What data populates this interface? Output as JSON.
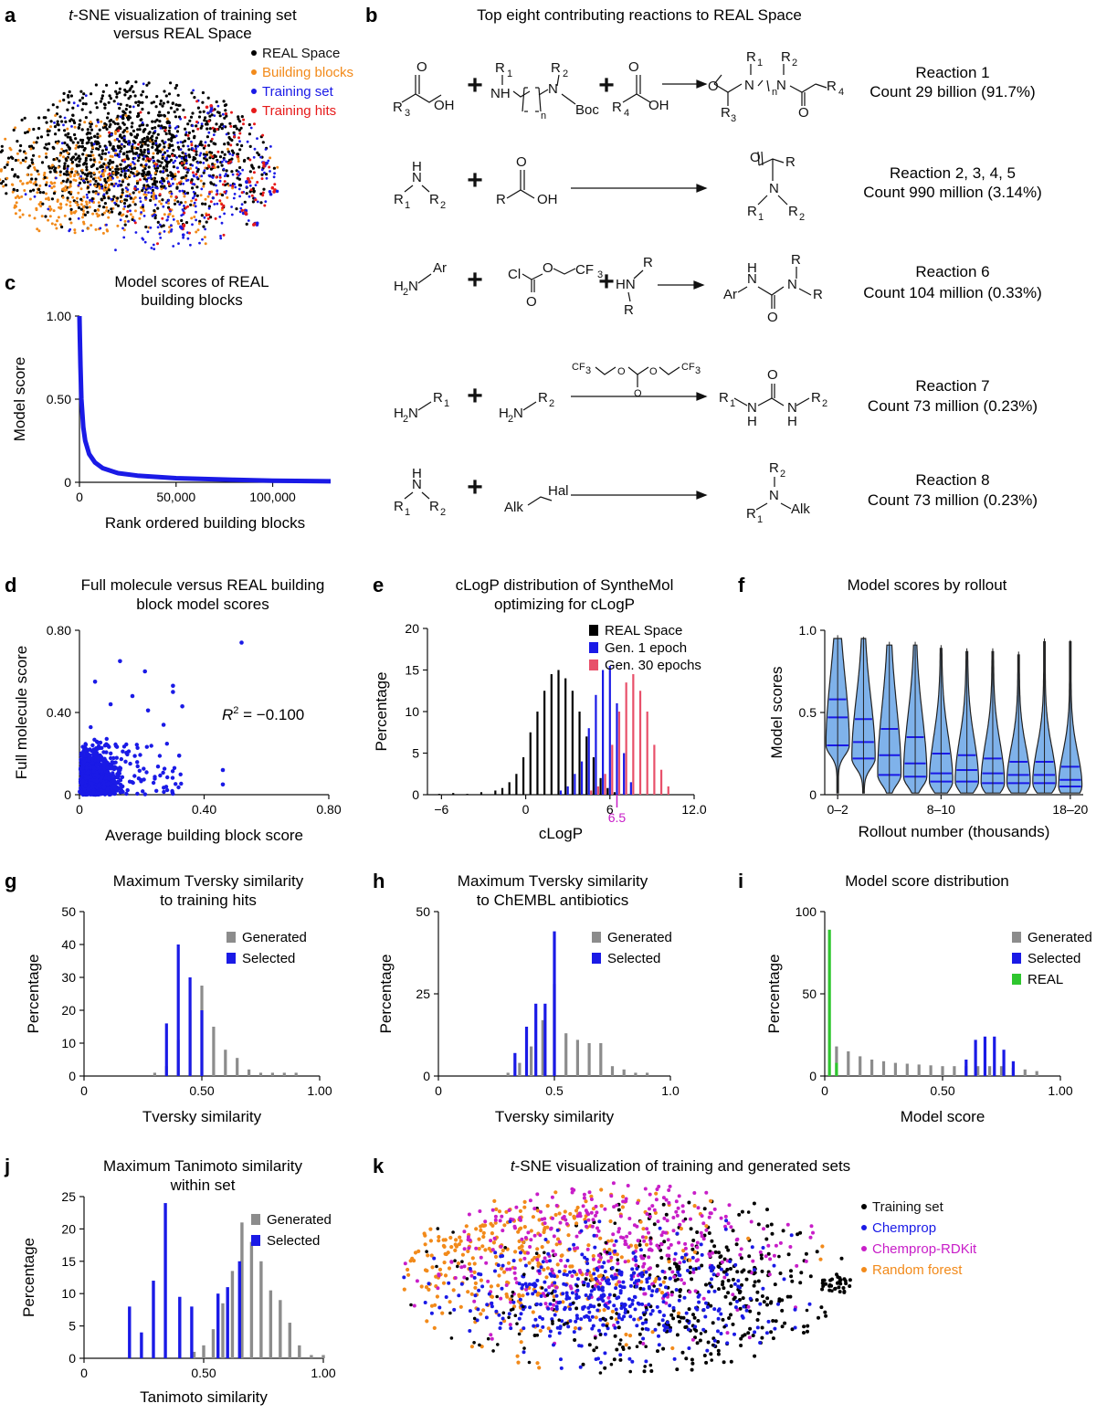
{
  "panels": {
    "a": {
      "label": "a",
      "title_italic": "t",
      "title_line1": "-SNE visualization of training set",
      "title_line2": "versus REAL Space",
      "legend": [
        {
          "name": "REAL Space",
          "color": "#000000"
        },
        {
          "name": "Building blocks",
          "color": "#f28a1a"
        },
        {
          "name": "Training set",
          "color": "#1a1ae6"
        },
        {
          "name": "Training hits",
          "color": "#e61a1a"
        }
      ]
    },
    "b": {
      "label": "b",
      "title": "Top eight contributing reactions to REAL Space",
      "reactions": [
        {
          "name": "Reaction 1",
          "count": "Count 29 billion (91.7%)"
        },
        {
          "name": "Reaction 2, 3, 4, 5",
          "count": "Count 990 million (3.14%)"
        },
        {
          "name": "Reaction 6",
          "count": "Count 104 million (0.33%)"
        },
        {
          "name": "Reaction 7",
          "count": "Count 73 million (0.23%)"
        },
        {
          "name": "Reaction 8",
          "count": "Count 73 million (0.23%)"
        }
      ]
    },
    "c": {
      "label": "c"
    },
    "d": {
      "label": "d",
      "r2_label": "R",
      "r2_value": " = −0.100"
    },
    "e": {
      "label": "e",
      "marker_label": "6.5"
    },
    "f": {
      "label": "f"
    },
    "g": {
      "label": "g"
    },
    "h": {
      "label": "h"
    },
    "i": {
      "label": "i"
    },
    "j": {
      "label": "j"
    },
    "k": {
      "label": "k",
      "title_italic": "t",
      "title_rest": "-SNE visualization of training and generated sets",
      "legend": [
        {
          "name": "Training set",
          "color": "#000000"
        },
        {
          "name": "Chemprop",
          "color": "#1a1ae6"
        },
        {
          "name": "Chemprop-RDKit",
          "color": "#c81ec8"
        },
        {
          "name": "Random forest",
          "color": "#f28a1a"
        }
      ]
    }
  },
  "colors": {
    "black": "#000000",
    "orange": "#f28a1a",
    "blue": "#1a1ae6",
    "red": "#e61a1a",
    "grey": "#8c8c8c",
    "green": "#2ec62e",
    "pink": "#e8506a",
    "magenta": "#c81ec8",
    "violin": "#7fb2ea"
  },
  "chart_data": [
    {
      "id": "c",
      "type": "line",
      "title": "Model scores of REAL building blocks",
      "xlabel": "Rank ordered building blocks",
      "ylabel": "Model score",
      "xlim": [
        0,
        130000
      ],
      "ylim": [
        0,
        1
      ],
      "xticks": [
        0,
        50000,
        100000
      ],
      "xtick_labels": [
        "0",
        "50,000",
        "100,000"
      ],
      "yticks": [
        0,
        0.5,
        1
      ],
      "ytick_labels": [
        "0",
        "0.50",
        "1.00"
      ],
      "series": [
        {
          "name": "Building blocks",
          "x": [
            0,
            200,
            500,
            1000,
            2000,
            3000,
            5000,
            8000,
            12000,
            20000,
            30000,
            50000,
            80000,
            100000,
            130000
          ],
          "y": [
            1.0,
            0.88,
            0.7,
            0.5,
            0.33,
            0.25,
            0.17,
            0.12,
            0.085,
            0.055,
            0.04,
            0.025,
            0.015,
            0.01,
            0.006
          ]
        }
      ]
    },
    {
      "id": "d",
      "type": "scatter",
      "title": "Full molecule versus REAL building block model scores",
      "xlabel": "Average building block score",
      "ylabel": "Full molecule score",
      "xlim": [
        0,
        0.8
      ],
      "ylim": [
        0,
        0.8
      ],
      "xticks": [
        0,
        0.4,
        0.8
      ],
      "xtick_labels": [
        "0",
        "0.40",
        "0.80"
      ],
      "yticks": [
        0,
        0.4,
        0.8
      ],
      "ytick_labels": [
        "0",
        "0.40",
        "0.80"
      ],
      "outliers": [
        {
          "x": 0.52,
          "y": 0.74
        },
        {
          "x": 0.13,
          "y": 0.65
        },
        {
          "x": 0.21,
          "y": 0.6
        },
        {
          "x": 0.3,
          "y": 0.5
        },
        {
          "x": 0.3,
          "y": 0.53
        },
        {
          "x": 0.33,
          "y": 0.43
        },
        {
          "x": 0.17,
          "y": 0.48
        },
        {
          "x": 0.27,
          "y": 0.34
        },
        {
          "x": 0.46,
          "y": 0.12
        },
        {
          "x": 0.46,
          "y": 0.05
        },
        {
          "x": 0.32,
          "y": 0.19
        },
        {
          "x": 0.1,
          "y": 0.44
        },
        {
          "x": 0.05,
          "y": 0.55
        },
        {
          "x": 0.22,
          "y": 0.41
        }
      ],
      "r2": -0.1
    },
    {
      "id": "e",
      "type": "bar",
      "title": "cLogP distribution of SyntheMol optimizing for cLogP",
      "xlabel": "cLogP",
      "ylabel": "Percentage",
      "xlim": [
        -7,
        12
      ],
      "ylim": [
        0,
        20
      ],
      "xticks": [
        -6,
        0,
        6,
        12
      ],
      "xtick_labels": [
        "−6",
        "0",
        "6",
        "12.0"
      ],
      "yticks": [
        0,
        5,
        10,
        15,
        20
      ],
      "ytick_labels": [
        "0",
        "5",
        "10",
        "15",
        "20"
      ],
      "series": [
        {
          "name": "REAL Space",
          "color": "#000000",
          "x": [
            -6,
            -5,
            -4,
            -3,
            -2,
            -1.5,
            -1,
            -0.5,
            0,
            0.5,
            1,
            1.5,
            2,
            2.5,
            3,
            3.5,
            4,
            4.5,
            5,
            5.5,
            6,
            6.5
          ],
          "values": [
            0.1,
            0.2,
            0.1,
            0.3,
            0.5,
            0.8,
            1.5,
            2.5,
            4.5,
            7.5,
            10.0,
            12.5,
            14.5,
            15.0,
            14.0,
            12.5,
            10.0,
            7.0,
            4.5,
            2.0,
            0.8,
            0.3
          ]
        },
        {
          "name": "Gen. 1 epoch",
          "color": "#1a1ae6",
          "x": [
            2.5,
            3,
            3.5,
            4,
            4.5,
            5,
            5.5,
            6,
            6.5,
            7,
            7.5
          ],
          "values": [
            0.5,
            1.0,
            2.5,
            4.0,
            8.0,
            12.0,
            15.0,
            15.5,
            11.0,
            5.0,
            1.5
          ]
        },
        {
          "name": "Gen. 30 epochs",
          "color": "#e8506a",
          "x": [
            4.5,
            5,
            5.5,
            6,
            6.5,
            7,
            7.5,
            8,
            8.5,
            9,
            9.5,
            10
          ],
          "values": [
            0.5,
            1.0,
            2.5,
            6.0,
            10.0,
            13.5,
            14.5,
            12.5,
            10.0,
            6.0,
            3.0,
            1.0
          ]
        }
      ],
      "vline": 6.5
    },
    {
      "id": "f",
      "type": "violin",
      "title": "Model scores by rollout",
      "xlabel": "Rollout number (thousands)",
      "ylabel": "Model scores",
      "categories": [
        "0–2",
        "2–4",
        "4–6",
        "6–8",
        "8–10",
        "10–12",
        "12–14",
        "14–16",
        "16–18",
        "18–20"
      ],
      "xtick_labels": [
        "0–2",
        "8–10",
        "18–20"
      ],
      "ylim": [
        0,
        1
      ],
      "yticks": [
        0,
        0.5,
        1
      ],
      "ytick_labels": [
        "0",
        "0.5",
        "1.0"
      ],
      "max": [
        0.97,
        0.96,
        0.93,
        0.93,
        0.91,
        0.89,
        0.89,
        0.87,
        0.95,
        0.94
      ],
      "quartiles": [
        [
          0.3,
          0.47,
          0.58
        ],
        [
          0.22,
          0.32,
          0.46
        ],
        [
          0.12,
          0.24,
          0.4
        ],
        [
          0.11,
          0.19,
          0.35
        ],
        [
          0.08,
          0.13,
          0.25
        ],
        [
          0.08,
          0.15,
          0.24
        ],
        [
          0.07,
          0.13,
          0.22
        ],
        [
          0.07,
          0.12,
          0.2
        ],
        [
          0.07,
          0.12,
          0.2
        ],
        [
          0.05,
          0.09,
          0.17
        ]
      ]
    },
    {
      "id": "g",
      "type": "bar",
      "title": "Maximum Tversky similarity to training hits",
      "xlabel": "Tversky similarity",
      "ylabel": "Percentage",
      "xlim": [
        0,
        1
      ],
      "ylim": [
        0,
        50
      ],
      "xticks": [
        0,
        0.5,
        1
      ],
      "xtick_labels": [
        "0",
        "0.50",
        "1.00"
      ],
      "yticks": [
        0,
        10,
        20,
        30,
        40,
        50
      ],
      "ytick_labels": [
        "0",
        "10",
        "20",
        "30",
        "40",
        "50"
      ],
      "series": [
        {
          "name": "Generated",
          "color": "#8c8c8c",
          "x": [
            0.3,
            0.35,
            0.4,
            0.45,
            0.5,
            0.55,
            0.6,
            0.65,
            0.7,
            0.75,
            0.8,
            0.85,
            0.9
          ],
          "values": [
            1.0,
            3.0,
            11.0,
            20.0,
            27.5,
            15.0,
            8.0,
            5.5,
            2.0,
            1.0,
            1.0,
            1.0,
            1.0
          ]
        },
        {
          "name": "Selected",
          "color": "#1a1ae6",
          "x": [
            0.35,
            0.4,
            0.45,
            0.5
          ],
          "values": [
            16.0,
            40.0,
            30.0,
            20.0
          ]
        }
      ]
    },
    {
      "id": "h",
      "type": "bar",
      "title": "Maximum Tversky similarity to ChEMBL antibiotics",
      "xlabel": "Tversky similarity",
      "ylabel": "Percentage",
      "xlim": [
        0,
        1
      ],
      "ylim": [
        0,
        50
      ],
      "xticks": [
        0,
        0.5,
        1
      ],
      "xtick_labels": [
        "0",
        "0.5",
        "1.0"
      ],
      "yticks": [
        0,
        25,
        50
      ],
      "ytick_labels": [
        "0",
        "25",
        "50"
      ],
      "series": [
        {
          "name": "Generated",
          "color": "#8c8c8c",
          "x": [
            0.3,
            0.35,
            0.4,
            0.45,
            0.5,
            0.55,
            0.6,
            0.65,
            0.7,
            0.75,
            0.8,
            0.85,
            0.9
          ],
          "values": [
            1.0,
            4.0,
            9.0,
            17.0,
            28.0,
            13.0,
            11.0,
            10.0,
            10.0,
            3.0,
            2.0,
            1.0,
            1.0
          ]
        },
        {
          "name": "Selected",
          "color": "#1a1ae6",
          "x": [
            0.33,
            0.38,
            0.42,
            0.46,
            0.5
          ],
          "values": [
            7.0,
            15.0,
            22.0,
            22.0,
            44.0
          ]
        }
      ]
    },
    {
      "id": "i",
      "type": "bar",
      "title": "Model score distribution",
      "xlabel": "Model score",
      "ylabel": "Percentage",
      "xlim": [
        0,
        1
      ],
      "ylim": [
        0,
        100
      ],
      "xticks": [
        0,
        0.5,
        1
      ],
      "xtick_labels": [
        "0",
        "0.50",
        "1.00"
      ],
      "yticks": [
        0,
        50,
        100
      ],
      "ytick_labels": [
        "0",
        "50",
        "100"
      ],
      "series": [
        {
          "name": "Generated",
          "color": "#8c8c8c",
          "x": [
            0.05,
            0.1,
            0.15,
            0.2,
            0.25,
            0.3,
            0.35,
            0.4,
            0.45,
            0.5,
            0.55,
            0.6,
            0.65,
            0.7,
            0.75,
            0.8,
            0.85,
            0.9
          ],
          "values": [
            18.0,
            15.0,
            12.0,
            10.0,
            9.0,
            8.0,
            7.5,
            7.0,
            6.5,
            6.0,
            6.0,
            6.0,
            6.0,
            6.0,
            6.0,
            5.0,
            4.0,
            3.0
          ]
        },
        {
          "name": "Selected",
          "color": "#1a1ae6",
          "x": [
            0.6,
            0.64,
            0.68,
            0.72,
            0.76,
            0.8
          ],
          "values": [
            10.0,
            22.0,
            24.0,
            24.0,
            16.0,
            9.0
          ]
        },
        {
          "name": "REAL",
          "color": "#2ec62e",
          "x": [
            0.02,
            0.05
          ],
          "values": [
            89.0,
            8.0
          ]
        }
      ]
    },
    {
      "id": "j",
      "type": "bar",
      "title": "Maximum Tanimoto similarity within set",
      "xlabel": "Tanimoto similarity",
      "ylabel": "Percentage",
      "xlim": [
        0,
        1
      ],
      "ylim": [
        0,
        25
      ],
      "xticks": [
        0,
        0.5,
        1
      ],
      "xtick_labels": [
        "0",
        "0.50",
        "1.00"
      ],
      "yticks": [
        0,
        5,
        10,
        15,
        20,
        25
      ],
      "ytick_labels": [
        "0",
        "5",
        "10",
        "15",
        "20",
        "25"
      ],
      "series": [
        {
          "name": "Generated",
          "color": "#8c8c8c",
          "x": [
            0.46,
            0.5,
            0.54,
            0.58,
            0.62,
            0.66,
            0.7,
            0.74,
            0.78,
            0.82,
            0.86,
            0.9,
            0.95,
            1.0
          ],
          "values": [
            1.0,
            2.0,
            4.5,
            8.5,
            13.5,
            21.0,
            18.0,
            15.0,
            10.5,
            9.0,
            5.5,
            2.0,
            0.5,
            0.5
          ]
        },
        {
          "name": "Selected",
          "color": "#1a1ae6",
          "x": [
            0.19,
            0.24,
            0.29,
            0.34,
            0.4,
            0.45,
            0.56,
            0.6,
            0.65
          ],
          "values": [
            8.0,
            4.0,
            12.0,
            24.0,
            9.5,
            8.0,
            10.0,
            11.0,
            15.0
          ]
        }
      ]
    }
  ],
  "panel_texts": {
    "c": {
      "title1": "Model scores of REAL",
      "title2": "building blocks"
    },
    "d": {
      "title1": "Full molecule versus REAL building",
      "title2": "block model scores"
    },
    "e": {
      "title1": "cLogP distribution of SyntheMol",
      "title2": "optimizing for cLogP"
    },
    "f": {
      "title1": "Model scores by rollout"
    },
    "g": {
      "title1": "Maximum Tversky similarity",
      "title2": "to training hits"
    },
    "h": {
      "title1": "Maximum Tversky similarity",
      "title2": "to ChEMBL antibiotics"
    },
    "i": {
      "title1": "Model score distribution"
    },
    "j": {
      "title1": "Maximum Tanimoto similarity",
      "title2": "within set"
    }
  },
  "chem_labels": {
    "oh": "OH",
    "nh": "NH",
    "n": "N",
    "h": "H",
    "boc": "Boc",
    "r": "R",
    "r1": "R",
    "r2": "R",
    "r3": "R",
    "r4": "R",
    "ar": "Ar",
    "cl": "Cl",
    "o": "O",
    "cf3": "CF",
    "h2n": "H",
    "alk": "Alk",
    "hal": "Hal",
    "sub_n": "n",
    "sub_1": "1",
    "sub_2": "2",
    "sub_3": "3",
    "sub_4": "4",
    "plus": "+"
  }
}
